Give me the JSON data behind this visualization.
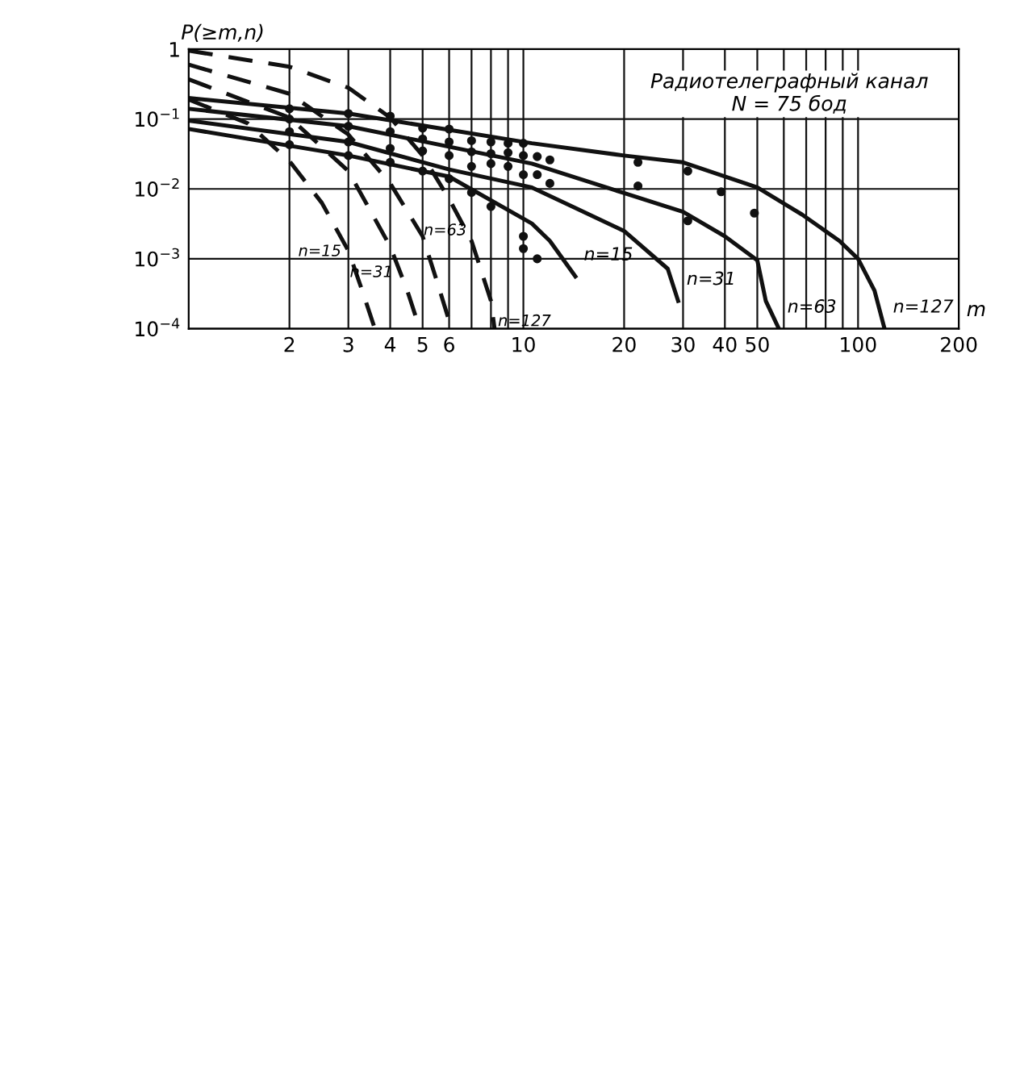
{
  "chart_data": {
    "type": "line",
    "ylabel": "P(≥m,n)",
    "xlabel": "m",
    "log": "xy",
    "xlim": [
      1,
      200
    ],
    "ylim": [
      0.0001,
      1
    ],
    "xticks": [
      2,
      3,
      4,
      5,
      6,
      {
        "value": 7,
        "label": null
      },
      {
        "value": 8,
        "label": null
      },
      {
        "value": 9,
        "label": null
      },
      10,
      20,
      30,
      40,
      50,
      {
        "value": 60,
        "label": null
      },
      {
        "value": 70,
        "label": null
      },
      {
        "value": 80,
        "label": null
      },
      {
        "value": 90,
        "label": null
      },
      100,
      200
    ],
    "yticks": [
      {
        "value": 0.0001,
        "label": "10$^{−4}$"
      },
      {
        "value": 0.001,
        "label": "10$^{−3}$"
      },
      {
        "value": 0.01,
        "label": "10$^{−2}$"
      },
      {
        "value": 0.1,
        "label": "10$^{−1}$"
      },
      1
    ],
    "grid": true,
    "legend": false,
    "marker": "none",
    "annotations": [
      "Радиотелеграфный канал\nN = 75 бод"
    ],
    "series": [
      {
        "name": "n=15",
        "color": "#111111",
        "line_style": "solid",
        "x": [
          1,
          3,
          6,
          10.6,
          12,
          14.3
        ],
        "values": [
          0.072,
          0.03,
          0.015,
          0.0032,
          0.0018,
          0.00056
        ]
      },
      {
        "name": "n=31",
        "color": "#111111",
        "line_style": "solid",
        "x": [
          1,
          3,
          6,
          10.6,
          20,
          27,
          29
        ],
        "values": [
          0.095,
          0.047,
          0.019,
          0.0105,
          0.0025,
          0.00072,
          0.00025
        ]
      },
      {
        "name": "n=63",
        "color": "#111111",
        "line_style": "solid",
        "x": [
          1,
          3,
          10.6,
          20,
          30,
          40,
          50,
          53,
          58
        ],
        "values": [
          0.14,
          0.079,
          0.023,
          0.0087,
          0.0047,
          0.0021,
          0.00095,
          0.00025,
          0.0001
        ]
      },
      {
        "name": "n=127",
        "color": "#111111",
        "line_style": "solid",
        "x": [
          1,
          3,
          10.6,
          20,
          30,
          50,
          68,
          88,
          100,
          112,
          120
        ],
        "values": [
          0.2,
          0.12,
          0.045,
          0.03,
          0.024,
          0.0105,
          0.0043,
          0.0018,
          0.001,
          0.00035,
          0.0001
        ]
      },
      {
        "name": "n=15",
        "color": "#111111",
        "line_style": "dashed",
        "x": [
          1,
          1.5,
          2,
          2.5,
          3,
          3.3,
          3.6
        ],
        "values": [
          0.19,
          0.087,
          0.025,
          0.0063,
          0.0013,
          0.00035,
          0.0001
        ]
      },
      {
        "name": "n=31",
        "color": "#111111",
        "line_style": "dashed",
        "x": [
          1,
          2,
          3,
          4,
          4.5,
          4.9
        ],
        "values": [
          0.37,
          0.105,
          0.018,
          0.0015,
          0.00035,
          0.0001
        ]
      },
      {
        "name": "n=63",
        "color": "#111111",
        "line_style": "dashed",
        "x": [
          1,
          2,
          3,
          4,
          5,
          5.5,
          6.1
        ],
        "values": [
          0.6,
          0.23,
          0.06,
          0.012,
          0.0021,
          0.0005,
          0.0001
        ]
      },
      {
        "name": "n=127",
        "color": "#111111",
        "line_style": "dashed",
        "x": [
          1,
          2,
          3,
          4,
          5,
          6,
          7,
          8,
          8.2
        ],
        "values": [
          0.95,
          0.56,
          0.28,
          0.105,
          0.03,
          0.0072,
          0.0018,
          0.00025,
          0.0001
        ]
      },
      {
        "type": "scatter",
        "color": "#111111",
        "marker": "circle",
        "x": [
          2,
          2,
          2,
          2,
          3,
          3,
          3,
          3,
          4,
          4,
          4,
          4,
          5,
          5,
          5,
          5,
          6,
          6,
          6,
          6,
          7,
          7,
          7,
          7,
          8,
          8,
          8,
          8,
          9,
          9,
          9,
          10,
          10,
          10,
          10,
          10,
          11,
          11,
          11,
          12,
          12,
          22,
          22,
          31,
          31,
          39,
          49
        ],
        "values": [
          0.14,
          0.1,
          0.066,
          0.043,
          0.12,
          0.079,
          0.047,
          0.03,
          0.11,
          0.066,
          0.038,
          0.024,
          0.074,
          0.052,
          0.035,
          0.018,
          0.072,
          0.047,
          0.03,
          0.014,
          0.049,
          0.034,
          0.021,
          0.0089,
          0.047,
          0.032,
          0.023,
          0.0056,
          0.045,
          0.033,
          0.021,
          0.045,
          0.03,
          0.016,
          0.0021,
          0.0014,
          0.029,
          0.016,
          0.001,
          0.026,
          0.012,
          0.024,
          0.011,
          0.018,
          0.0035,
          0.0091,
          0.0045
        ]
      }
    ]
  }
}
